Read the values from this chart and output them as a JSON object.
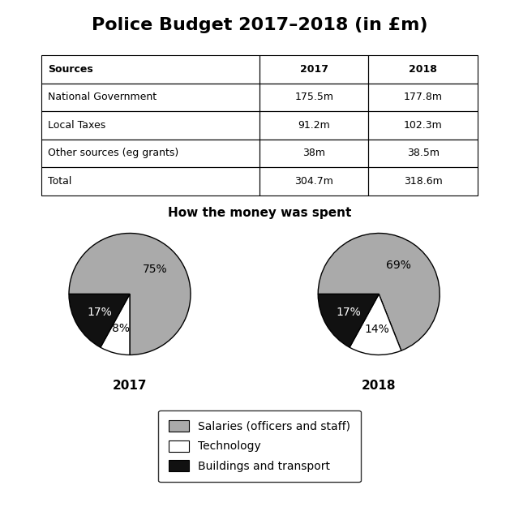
{
  "title": "Police Budget 2017–2018 (in £m)",
  "table": {
    "headers": [
      "Sources",
      "2017",
      "2018"
    ],
    "rows": [
      [
        "National Government",
        "175.5m",
        "177.8m"
      ],
      [
        "Local Taxes",
        "91.2m",
        "102.3m"
      ],
      [
        "Other sources (eg grants)",
        "38m",
        "38.5m"
      ],
      [
        "Total",
        "304.7m",
        "318.6m"
      ]
    ]
  },
  "pie_subtitle": "How the money was spent",
  "pie_2017": {
    "values": [
      75,
      8,
      17
    ],
    "labels": [
      "75%",
      "8%",
      "17%"
    ],
    "colors": [
      "#aaaaaa",
      "#ffffff",
      "#111111"
    ],
    "year": "2017",
    "startangle": 180,
    "counterclock": false
  },
  "pie_2018": {
    "values": [
      69,
      14,
      17
    ],
    "labels": [
      "69%",
      "14%",
      "17%"
    ],
    "colors": [
      "#aaaaaa",
      "#ffffff",
      "#111111"
    ],
    "year": "2018",
    "startangle": 180,
    "counterclock": false
  },
  "legend_items": [
    {
      "label": "Salaries (officers and staff)",
      "color": "#aaaaaa"
    },
    {
      "label": "Technology",
      "color": "#ffffff"
    },
    {
      "label": "Buildings and transport",
      "color": "#111111"
    }
  ],
  "background_color": "#ffffff",
  "title_fontsize": 16,
  "table_fontsize": 9,
  "pie_label_fontsize": 10,
  "year_label_fontsize": 11,
  "subtitle_fontsize": 11,
  "legend_fontsize": 10
}
